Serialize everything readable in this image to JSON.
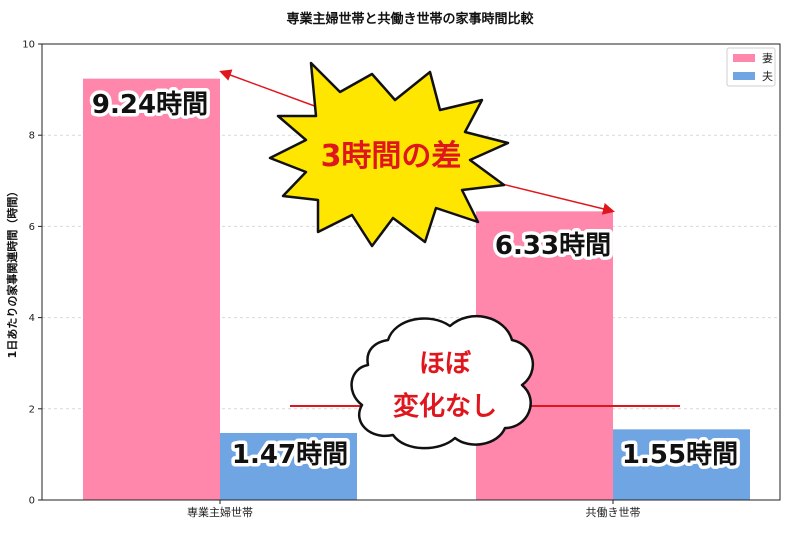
{
  "chart_data": {
    "type": "bar",
    "title": "専業主婦世帯と共働き世帯の家事時間比較",
    "xlabel": "",
    "ylabel": "1日あたりの家事関連時間（時間）",
    "categories": [
      "専業主婦世帯",
      "共働き世帯"
    ],
    "series": [
      {
        "name": "妻",
        "values": [
          9.24,
          6.33
        ],
        "color": "#ff87ab"
      },
      {
        "name": "夫",
        "values": [
          1.47,
          1.55
        ],
        "color": "#6fa5e3"
      }
    ],
    "ylim": [
      0,
      10
    ],
    "yticks": [
      0,
      2,
      4,
      6,
      8,
      10
    ],
    "grid": true,
    "legend_position": "top-right",
    "data_labels": [
      "9.24時間",
      "6.33時間",
      "1.47時間",
      "1.55時間"
    ]
  },
  "annotations": {
    "difference_burst": "3時間の差",
    "no_change_cloud_line1": "ほぼ",
    "no_change_cloud_line2": "変化なし",
    "accent_color": "#e0161e",
    "burst_color": "#ffe600"
  }
}
